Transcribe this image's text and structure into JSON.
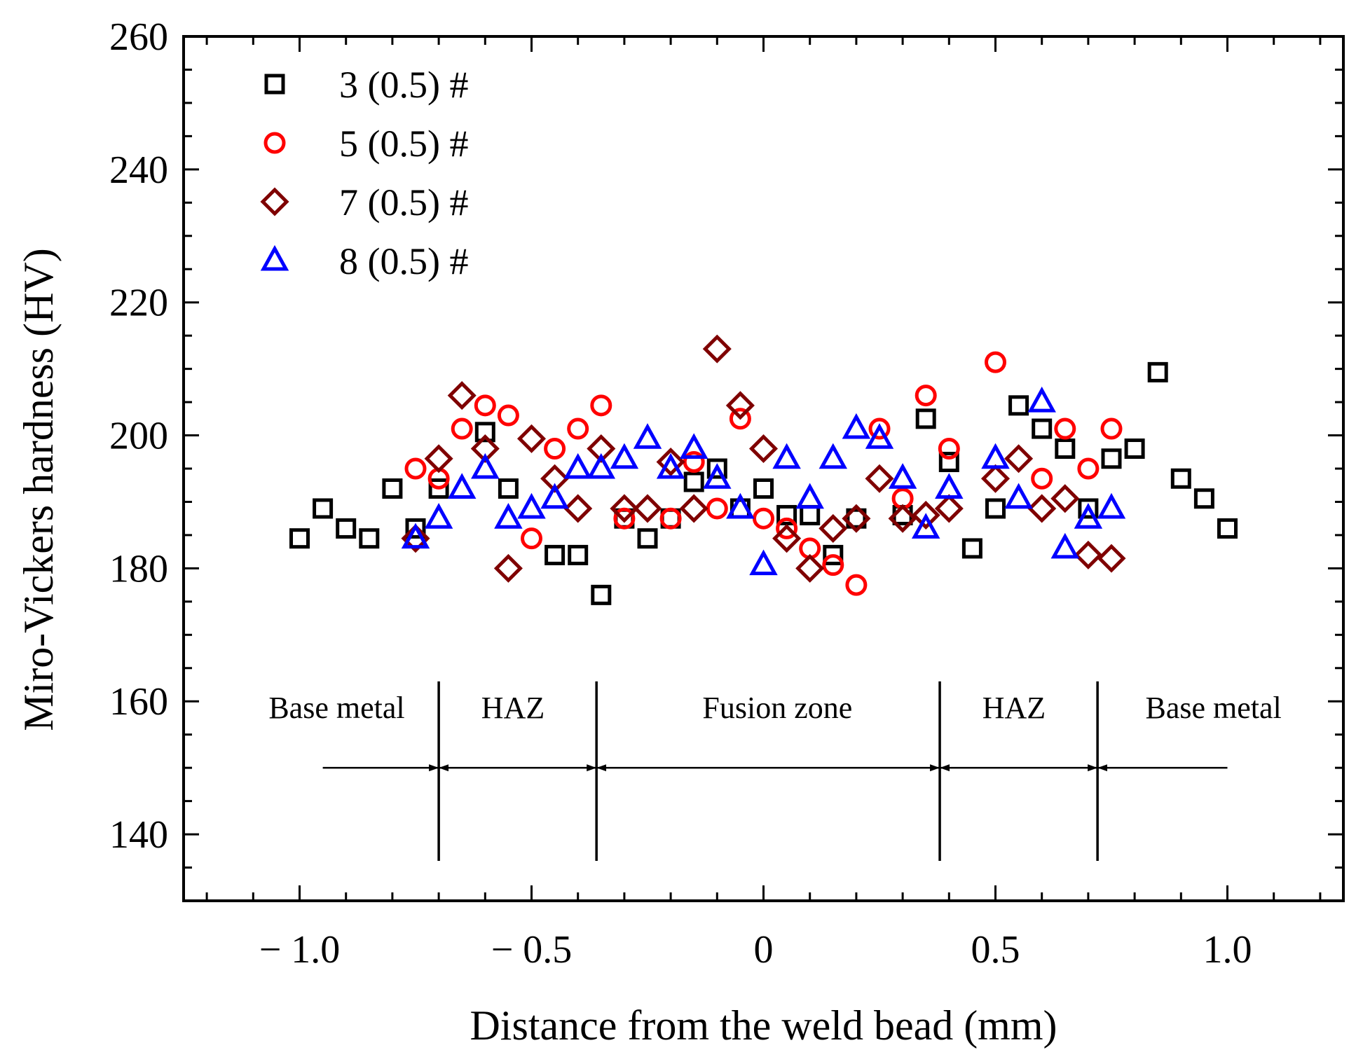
{
  "chart_data": {
    "type": "scatter",
    "xlabel": "Distance from the weld bead (mm)",
    "ylabel": "Miro-Vickers hardness (HV)",
    "xlim": [
      -1.25,
      1.25
    ],
    "ylim": [
      130,
      260
    ],
    "x_ticks": [
      -1.0,
      -0.5,
      0,
      0.5,
      1.0
    ],
    "x_tick_labels": [
      "− 1.0",
      "− 0.5",
      "0",
      "0.5",
      "1.0"
    ],
    "x_minor_step": 0.1,
    "y_ticks": [
      140,
      160,
      180,
      200,
      220,
      240,
      260
    ],
    "y_tick_labels": [
      "140",
      "160",
      "180",
      "200",
      "220",
      "240",
      "260"
    ],
    "y_minor_step": 5,
    "legend_position": "top-left",
    "series": [
      {
        "name": "3 (0.5) #",
        "marker": "square",
        "color": "#000000",
        "points": [
          [
            -1.0,
            184.5
          ],
          [
            -0.95,
            189
          ],
          [
            -0.9,
            186
          ],
          [
            -0.85,
            184.5
          ],
          [
            -0.8,
            192
          ],
          [
            -0.75,
            186
          ],
          [
            -0.7,
            192
          ],
          [
            -0.6,
            200.5
          ],
          [
            -0.55,
            192
          ],
          [
            -0.45,
            182
          ],
          [
            -0.4,
            182
          ],
          [
            -0.35,
            176
          ],
          [
            -0.3,
            187.5
          ],
          [
            -0.25,
            184.5
          ],
          [
            -0.2,
            187.5
          ],
          [
            -0.15,
            193
          ],
          [
            -0.1,
            195
          ],
          [
            -0.05,
            189
          ],
          [
            0.0,
            192
          ],
          [
            0.05,
            188
          ],
          [
            0.1,
            188
          ],
          [
            0.15,
            182
          ],
          [
            0.2,
            187.5
          ],
          [
            0.3,
            188
          ],
          [
            0.35,
            202.5
          ],
          [
            0.4,
            196
          ],
          [
            0.45,
            183
          ],
          [
            0.5,
            189
          ],
          [
            0.55,
            204.5
          ],
          [
            0.6,
            201
          ],
          [
            0.65,
            198
          ],
          [
            0.7,
            189
          ],
          [
            0.75,
            196.5
          ],
          [
            0.8,
            198
          ],
          [
            0.85,
            209.5
          ],
          [
            0.9,
            193.5
          ],
          [
            0.95,
            190.5
          ],
          [
            1.0,
            186
          ]
        ]
      },
      {
        "name": "5 (0.5) #",
        "marker": "circle",
        "color": "#ff0000",
        "points": [
          [
            -0.75,
            195
          ],
          [
            -0.7,
            193.5
          ],
          [
            -0.65,
            201
          ],
          [
            -0.6,
            204.5
          ],
          [
            -0.55,
            203
          ],
          [
            -0.5,
            184.5
          ],
          [
            -0.45,
            198
          ],
          [
            -0.4,
            201
          ],
          [
            -0.35,
            204.5
          ],
          [
            -0.3,
            187.5
          ],
          [
            -0.2,
            187.5
          ],
          [
            -0.15,
            196
          ],
          [
            -0.1,
            189
          ],
          [
            -0.05,
            202.5
          ],
          [
            0.0,
            187.5
          ],
          [
            0.05,
            186
          ],
          [
            0.1,
            183
          ],
          [
            0.15,
            180.5
          ],
          [
            0.2,
            177.5
          ],
          [
            0.25,
            201
          ],
          [
            0.3,
            190.5
          ],
          [
            0.35,
            206
          ],
          [
            0.4,
            198
          ],
          [
            0.5,
            211
          ],
          [
            0.6,
            193.5
          ],
          [
            0.65,
            201
          ],
          [
            0.7,
            195
          ],
          [
            0.75,
            201
          ]
        ]
      },
      {
        "name": "7 (0.5) #",
        "marker": "diamond",
        "color": "#7f0000",
        "points": [
          [
            -0.75,
            184.5
          ],
          [
            -0.7,
            196.5
          ],
          [
            -0.65,
            206
          ],
          [
            -0.6,
            198
          ],
          [
            -0.55,
            180
          ],
          [
            -0.5,
            199.5
          ],
          [
            -0.45,
            193.5
          ],
          [
            -0.4,
            189
          ],
          [
            -0.35,
            198
          ],
          [
            -0.3,
            189
          ],
          [
            -0.25,
            189
          ],
          [
            -0.2,
            196
          ],
          [
            -0.15,
            189
          ],
          [
            -0.1,
            213
          ],
          [
            -0.05,
            204.5
          ],
          [
            0.0,
            198
          ],
          [
            0.05,
            184.5
          ],
          [
            0.1,
            180
          ],
          [
            0.15,
            186
          ],
          [
            0.2,
            187.5
          ],
          [
            0.25,
            193.5
          ],
          [
            0.3,
            187.5
          ],
          [
            0.35,
            188
          ],
          [
            0.4,
            189
          ],
          [
            0.5,
            193.5
          ],
          [
            0.55,
            196.5
          ],
          [
            0.6,
            189
          ],
          [
            0.65,
            190.5
          ],
          [
            0.7,
            182
          ],
          [
            0.75,
            181.5
          ]
        ]
      },
      {
        "name": "8 (0.5) #",
        "marker": "triangle",
        "color": "#0000ff",
        "points": [
          [
            -0.75,
            184.5
          ],
          [
            -0.7,
            187.5
          ],
          [
            -0.65,
            192
          ],
          [
            -0.6,
            195
          ],
          [
            -0.55,
            187.5
          ],
          [
            -0.5,
            189
          ],
          [
            -0.45,
            190.5
          ],
          [
            -0.4,
            195
          ],
          [
            -0.35,
            195
          ],
          [
            -0.3,
            196.5
          ],
          [
            -0.25,
            199.5
          ],
          [
            -0.2,
            195
          ],
          [
            -0.15,
            198
          ],
          [
            -0.1,
            193.5
          ],
          [
            -0.05,
            189
          ],
          [
            0.0,
            180.5
          ],
          [
            0.05,
            196.5
          ],
          [
            0.1,
            190.5
          ],
          [
            0.15,
            196.5
          ],
          [
            0.2,
            201
          ],
          [
            0.25,
            199.5
          ],
          [
            0.3,
            193.5
          ],
          [
            0.35,
            186
          ],
          [
            0.4,
            192
          ],
          [
            0.5,
            196.5
          ],
          [
            0.55,
            190.5
          ],
          [
            0.6,
            205
          ],
          [
            0.65,
            183
          ],
          [
            0.7,
            187.5
          ],
          [
            0.75,
            189
          ]
        ]
      }
    ],
    "zone_boundaries": [
      -0.7,
      -0.36,
      0.38,
      0.72
    ],
    "zone_line_ylim": [
      136,
      163
    ],
    "zone_arrow_y": 150,
    "zone_arrow_x_extent": [
      -0.95,
      1.0
    ],
    "zones": [
      {
        "label": "Base metal",
        "x": -0.92
      },
      {
        "label": "HAZ",
        "x": -0.54
      },
      {
        "label": "Fusion zone",
        "x": 0.03
      },
      {
        "label": "HAZ",
        "x": 0.54
      },
      {
        "label": "Base metal",
        "x": 0.97
      }
    ]
  }
}
